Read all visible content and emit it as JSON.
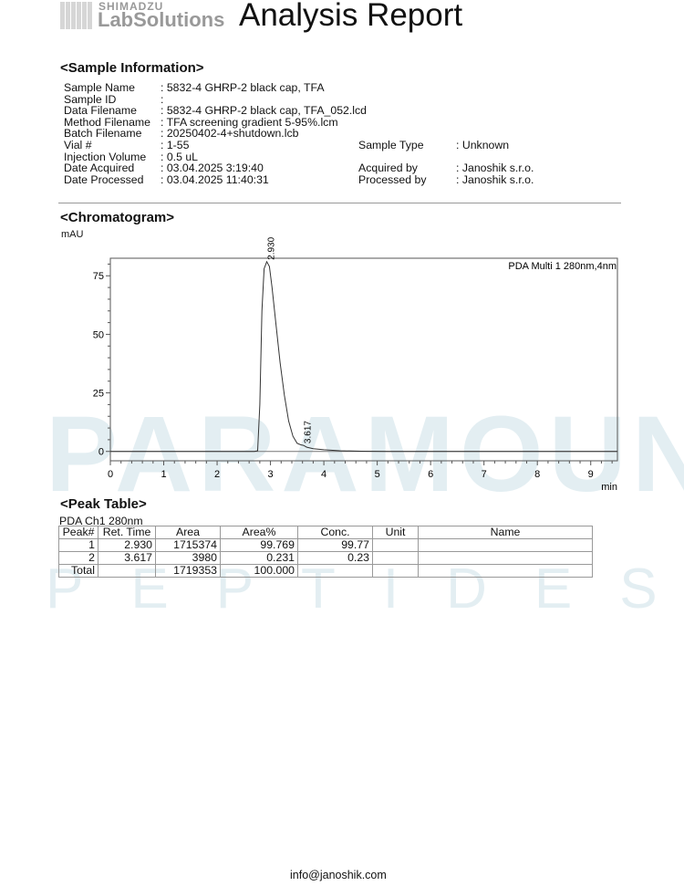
{
  "header": {
    "brand_top": "SHIMADZU",
    "brand": "LabSolutions",
    "title": "Analysis Report"
  },
  "watermark": {
    "line1": "PARAMOUNT",
    "line2": "PEPTIDES"
  },
  "sample_info": {
    "heading": "<Sample Information>",
    "left": [
      {
        "label": "Sample Name",
        "value": ": 5832-4 GHRP-2 black cap, TFA"
      },
      {
        "label": "Sample ID",
        "value": ":"
      },
      {
        "label": "Data Filename",
        "value": ": 5832-4 GHRP-2 black cap, TFA_052.lcd"
      },
      {
        "label": "Method Filename",
        "value": ": TFA screening gradient 5-95%.lcm"
      },
      {
        "label": "Batch Filename",
        "value": ": 20250402-4+shutdown.lcb"
      },
      {
        "label": "Vial #",
        "value": ": 1-55"
      },
      {
        "label": "Injection Volume",
        "value": ": 0.5 uL"
      },
      {
        "label": "Date Acquired",
        "value": ": 03.04.2025 3:19:40"
      },
      {
        "label": "Date Processed",
        "value": ": 03.04.2025 11:40:31"
      }
    ],
    "right": [
      {
        "label": "Sample Type",
        "value": ": Unknown"
      },
      {
        "label": "Acquired by",
        "value": ": Janoshik s.r.o."
      },
      {
        "label": "Processed by",
        "value": ": Janoshik s.r.o."
      }
    ]
  },
  "chromatogram": {
    "heading": "<Chromatogram>"
  },
  "chart_data": {
    "type": "line",
    "ylabel": "mAU",
    "xlabel": "min",
    "legend": "PDA Multi 1 280nm,4nm",
    "legend_position": "top-right",
    "xlim": [
      0,
      9.5
    ],
    "ylim": [
      -4,
      82.5
    ],
    "xticks": [
      0,
      1,
      2,
      3,
      4,
      5,
      6,
      7,
      8,
      9
    ],
    "yticks": [
      0,
      25,
      50,
      75
    ],
    "grid": false,
    "series": [
      {
        "x": [
          0,
          2.7,
          2.76,
          2.8,
          2.84,
          2.88,
          2.93,
          2.98,
          3.03,
          3.1,
          3.18,
          3.26,
          3.34,
          3.42,
          3.5,
          3.57,
          3.617,
          3.68,
          3.8,
          4.0,
          4.3,
          4.7,
          5.2,
          6,
          9.5
        ],
        "y": [
          0,
          0,
          0.3,
          20,
          60,
          78,
          81,
          79,
          70,
          55,
          38,
          24,
          13,
          6.5,
          3.5,
          2.8,
          2.6,
          1.8,
          1.2,
          0.7,
          0.3,
          0.1,
          0,
          0,
          0
        ]
      }
    ],
    "peak_labels": [
      {
        "x": 2.93,
        "y": 81,
        "text": "2.930"
      },
      {
        "x": 3.617,
        "y": 2.6,
        "text": "3.617"
      }
    ]
  },
  "peak_table": {
    "heading": "<Peak Table>",
    "channel": "PDA Ch1 280nm",
    "columns": [
      "Peak#",
      "Ret. Time",
      "Area",
      "Area%",
      "Conc.",
      "Unit",
      "Name"
    ],
    "rows": [
      [
        "1",
        "2.930",
        "1715374",
        "99.769",
        "99.77",
        "",
        ""
      ],
      [
        "2",
        "3.617",
        "3980",
        "0.231",
        "0.23",
        "",
        ""
      ]
    ],
    "total": [
      "Total",
      "",
      "1719353",
      "100.000",
      "",
      "",
      ""
    ]
  },
  "footer": {
    "email": "info@janoshik.com"
  }
}
